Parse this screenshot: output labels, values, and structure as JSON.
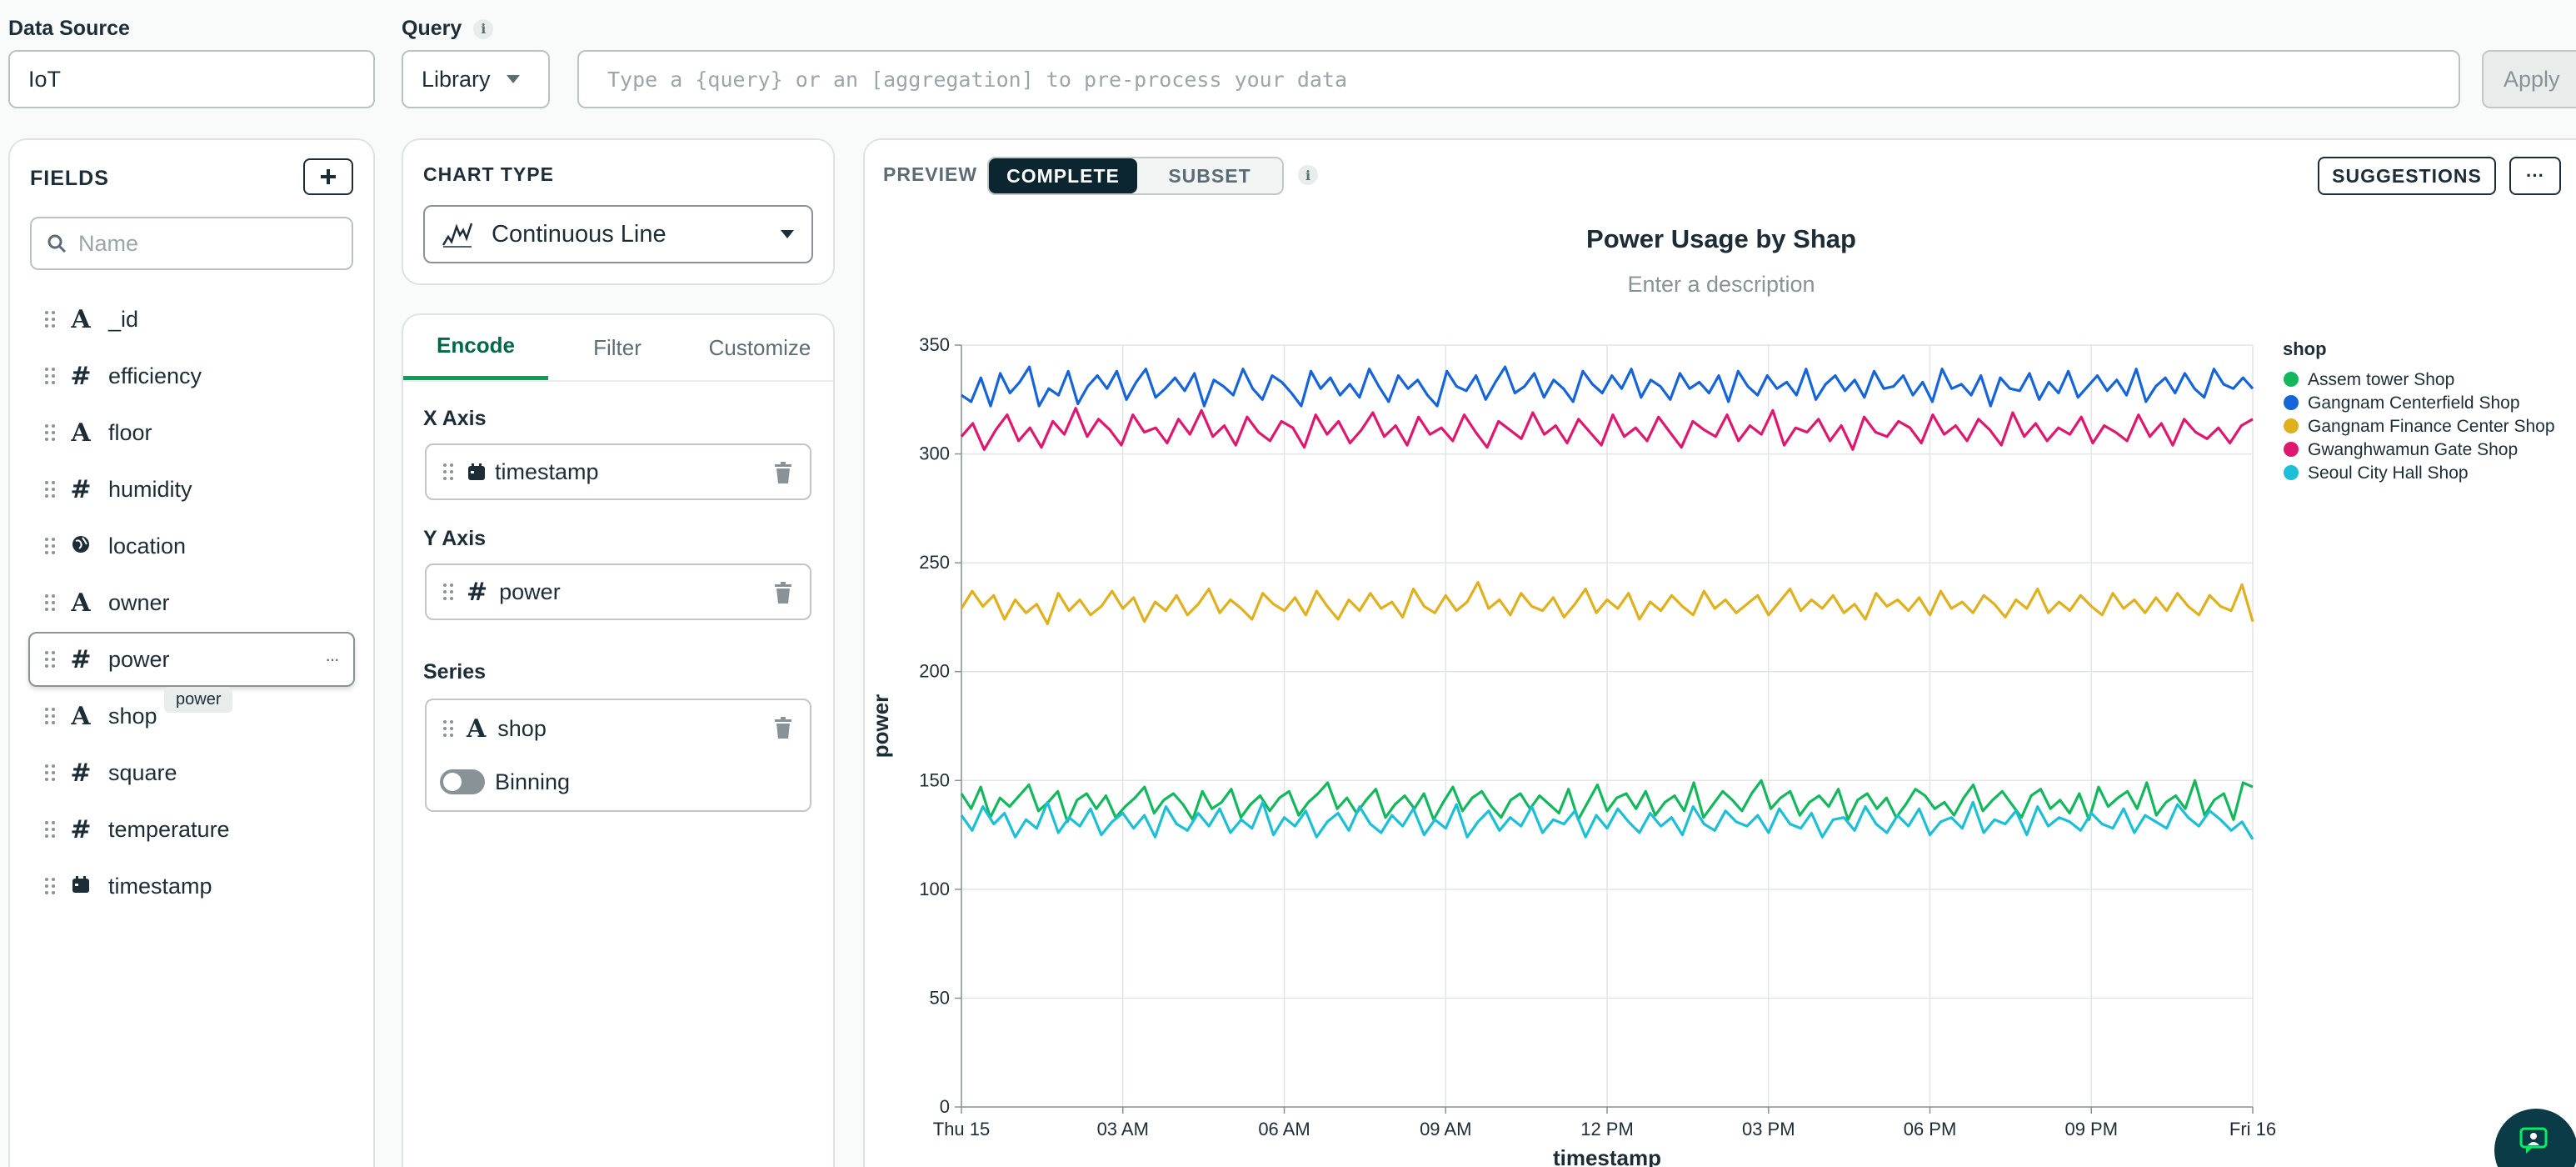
{
  "data_source": {
    "label": "Data Source",
    "value": "IoT"
  },
  "query": {
    "label": "Query",
    "library_label": "Library",
    "placeholder": "Type a {query} or an [aggregation] to pre-process your data",
    "apply_label": "Apply"
  },
  "fields": {
    "title": "FIELDS",
    "search_placeholder": "Name",
    "items": [
      {
        "name": "_id",
        "type": "A"
      },
      {
        "name": "efficiency",
        "type": "#"
      },
      {
        "name": "floor",
        "type": "A"
      },
      {
        "name": "humidity",
        "type": "#"
      },
      {
        "name": "location",
        "type": "globe"
      },
      {
        "name": "owner",
        "type": "A"
      },
      {
        "name": "power",
        "type": "#"
      },
      {
        "name": "shop",
        "type": "A"
      },
      {
        "name": "square",
        "type": "#"
      },
      {
        "name": "temperature",
        "type": "#"
      },
      {
        "name": "timestamp",
        "type": "calendar"
      }
    ],
    "tooltip": "power",
    "more_label": "···"
  },
  "chart_type": {
    "label": "CHART TYPE",
    "value": "Continuous Line"
  },
  "encode": {
    "tabs": [
      "Encode",
      "Filter",
      "Customize"
    ],
    "x_axis_label": "X Axis",
    "x_axis_field": "timestamp",
    "y_axis_label": "Y Axis",
    "y_axis_field": "power",
    "series_label": "Series",
    "series_field": "shop",
    "binning_label": "Binning"
  },
  "preview": {
    "label": "PREVIEW",
    "complete_label": "COMPLETE",
    "subset_label": "SUBSET",
    "suggestions_label": "SUGGESTIONS",
    "more_label": "···"
  },
  "colors": {
    "accent_green": "#00a35c",
    "dark_toggle": "#0b2531"
  },
  "chart_data": {
    "type": "line",
    "title": "Power Usage by Shap",
    "subtitle": "Enter a description",
    "xlabel": "timestamp",
    "ylabel": "power",
    "ylim": [
      0,
      350
    ],
    "yticks": [
      0,
      50,
      100,
      150,
      200,
      250,
      300,
      350
    ],
    "xticks": [
      "Thu 15",
      "03 AM",
      "06 AM",
      "09 AM",
      "12 PM",
      "03 PM",
      "06 PM",
      "09 PM",
      "Fri 16"
    ],
    "xrange_hours": [
      0,
      24
    ],
    "grid": true,
    "legend_title": "shop",
    "legend_position": "right",
    "series": [
      {
        "name": "Assem tower Shop",
        "color": "#12b85b",
        "values": [
          144,
          137,
          147,
          133,
          142,
          138,
          143,
          148,
          136,
          140,
          145,
          131,
          141,
          144,
          137,
          143,
          133,
          138,
          142,
          147,
          135,
          141,
          144,
          139,
          132,
          145,
          137,
          140,
          146,
          133,
          139,
          143,
          136,
          142,
          145,
          134,
          140,
          144,
          149,
          137,
          142,
          135,
          141,
          146,
          133,
          139,
          143,
          137,
          144,
          132,
          140,
          147,
          136,
          142,
          145,
          138,
          133,
          141,
          144,
          137,
          143,
          139,
          135,
          146,
          132,
          140,
          148,
          136,
          142,
          144,
          137,
          145,
          134,
          140,
          143,
          136,
          149,
          133,
          139,
          145,
          141,
          136,
          144,
          150,
          137,
          142,
          145,
          134,
          140,
          143,
          138,
          146,
          132,
          141,
          144,
          137,
          142,
          133,
          139,
          146,
          143,
          137,
          140,
          134,
          142,
          148,
          136,
          141,
          145,
          139,
          133,
          143,
          146,
          137,
          141,
          135,
          144,
          132,
          147,
          138,
          142,
          145,
          137,
          149,
          134,
          140,
          143,
          137,
          150,
          134,
          141,
          144,
          132,
          149,
          147
        ]
      },
      {
        "name": "Gangnam Centerfield Shop",
        "color": "#1664d9",
        "values": [
          327,
          324,
          335,
          322,
          337,
          328,
          333,
          340,
          322,
          330,
          327,
          338,
          323,
          331,
          336,
          330,
          338,
          325,
          333,
          339,
          326,
          330,
          335,
          329,
          337,
          322,
          334,
          331,
          327,
          339,
          330,
          325,
          336,
          333,
          328,
          322,
          338,
          330,
          335,
          327,
          332,
          326,
          339,
          331,
          324,
          336,
          330,
          334,
          327,
          322,
          338,
          331,
          329,
          336,
          325,
          333,
          340,
          328,
          331,
          337,
          326,
          334,
          330,
          324,
          338,
          332,
          328,
          336,
          330,
          339,
          326,
          334,
          331,
          325,
          337,
          330,
          333,
          328,
          336,
          324,
          338,
          331,
          327,
          336,
          330,
          333,
          327,
          339,
          325,
          332,
          336,
          329,
          334,
          326,
          338,
          330,
          331,
          336,
          327,
          333,
          324,
          339,
          330,
          332,
          327,
          336,
          322,
          335,
          330,
          329,
          337,
          325,
          333,
          328,
          338,
          326,
          331,
          336,
          329,
          334,
          327,
          339,
          324,
          331,
          335,
          328,
          337,
          330,
          326,
          339,
          332,
          330,
          335,
          330
        ]
      },
      {
        "name": "Gangnam Finance Center Shop",
        "color": "#e0b01f",
        "values": [
          229,
          237,
          230,
          235,
          224,
          233,
          227,
          231,
          222,
          236,
          228,
          233,
          226,
          230,
          237,
          229,
          234,
          223,
          232,
          228,
          235,
          226,
          231,
          238,
          227,
          233,
          229,
          224,
          236,
          231,
          228,
          234,
          226,
          237,
          230,
          224,
          233,
          228,
          236,
          229,
          232,
          225,
          238,
          230,
          227,
          235,
          228,
          232,
          241,
          229,
          233,
          226,
          236,
          230,
          228,
          234,
          225,
          231,
          238,
          227,
          233,
          229,
          236,
          224,
          232,
          228,
          235,
          230,
          226,
          237,
          229,
          233,
          227,
          231,
          235,
          226,
          232,
          238,
          228,
          233,
          229,
          235,
          227,
          231,
          224,
          236,
          230,
          233,
          228,
          234,
          226,
          237,
          229,
          232,
          227,
          235,
          231,
          225,
          233,
          229,
          238,
          227,
          232,
          228,
          235,
          230,
          226,
          236,
          229,
          233,
          227,
          234,
          228,
          236,
          230,
          226,
          235,
          230,
          228,
          240,
          223
        ]
      },
      {
        "name": "Gwanghwamun Gate Shop",
        "color": "#e0176e",
        "values": [
          308,
          314,
          302,
          311,
          318,
          306,
          312,
          303,
          315,
          309,
          321,
          308,
          316,
          311,
          304,
          318,
          310,
          312,
          305,
          316,
          309,
          320,
          308,
          313,
          304,
          317,
          310,
          306,
          315,
          312,
          303,
          318,
          309,
          315,
          305,
          311,
          319,
          308,
          313,
          304,
          317,
          309,
          312,
          306,
          318,
          310,
          303,
          315,
          311,
          307,
          319,
          309,
          313,
          305,
          316,
          310,
          304,
          318,
          308,
          312,
          306,
          317,
          310,
          303,
          315,
          311,
          308,
          318,
          306,
          313,
          309,
          320,
          304,
          312,
          310,
          316,
          306,
          313,
          302,
          317,
          310,
          308,
          315,
          312,
          305,
          318,
          309,
          313,
          306,
          316,
          311,
          304,
          319,
          308,
          314,
          306,
          312,
          309,
          317,
          305,
          313,
          310,
          306,
          318,
          308,
          314,
          304,
          316,
          310,
          307,
          312,
          305,
          313,
          316
        ]
      },
      {
        "name": "Seoul City Hall Shop",
        "color": "#1cbfd6",
        "values": [
          134,
          127,
          138,
          130,
          135,
          124,
          132,
          128,
          140,
          126,
          133,
          129,
          137,
          125,
          131,
          135,
          128,
          134,
          124,
          138,
          130,
          127,
          135,
          129,
          137,
          126,
          132,
          128,
          140,
          125,
          133,
          129,
          136,
          124,
          131,
          135,
          127,
          138,
          130,
          126,
          134,
          129,
          137,
          125,
          132,
          128,
          139,
          124,
          131,
          136,
          127,
          133,
          129,
          138,
          126,
          132,
          130,
          136,
          124,
          134,
          128,
          137,
          131,
          126,
          135,
          129,
          133,
          125,
          138,
          130,
          127,
          136,
          131,
          129,
          134,
          126,
          137,
          130,
          128,
          135,
          124,
          132,
          133,
          127,
          138,
          130,
          126,
          134,
          129,
          137,
          125,
          131,
          133,
          128,
          140,
          126,
          132,
          130,
          136,
          125,
          138,
          129,
          133,
          131,
          127,
          135,
          130,
          128,
          137,
          126,
          134,
          131,
          128,
          139,
          133,
          129,
          136,
          132,
          127,
          131,
          123
        ]
      }
    ]
  }
}
